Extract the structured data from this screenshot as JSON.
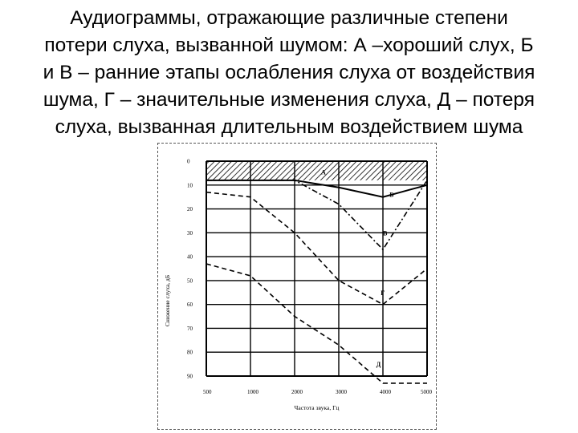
{
  "title_lines": [
    "Аудиограммы, отражающие различные степени",
    "потери слуха, вызванной шумом: А –хороший слух, Б",
    "и В – ранние этапы ослабления слуха от воздействия",
    "шума, Г – значительные изменения слуха, Д – потеря",
    "слуха, вызванная длительным воздействием шума"
  ],
  "chart_data": {
    "type": "line",
    "xlabel": "Частота звука, Гц",
    "ylabel": "Снижение слуха, дБ",
    "x_ticks": [
      "500",
      "1000",
      "2000",
      "3000",
      "4000",
      "5000"
    ],
    "y_ticks": [
      "0",
      "10",
      "20",
      "30",
      "40",
      "50",
      "60",
      "70",
      "80",
      "90"
    ],
    "ylim": [
      0,
      90
    ],
    "y_inverted": true,
    "grid": true,
    "region": {
      "name": "А",
      "from": 0,
      "to": 8,
      "pattern": "hatched"
    },
    "series": [
      {
        "name": "Б",
        "style": "solid",
        "x": [
          "500",
          "1000",
          "2000",
          "3000",
          "4000",
          "5000"
        ],
        "values": [
          8,
          8,
          8,
          11,
          15,
          10
        ]
      },
      {
        "name": "В",
        "style": "dash-dot",
        "x": [
          "500",
          "1000",
          "2000",
          "3000",
          "4000",
          "5000"
        ],
        "values": [
          8,
          8,
          8,
          18,
          37,
          8
        ]
      },
      {
        "name": "Г",
        "style": "dashed",
        "x": [
          "500",
          "1000",
          "2000",
          "3000",
          "4000",
          "5000"
        ],
        "values": [
          13,
          15,
          30,
          50,
          60,
          45
        ]
      },
      {
        "name": "Д",
        "style": "dashed",
        "x": [
          "500",
          "1000",
          "2000",
          "3000",
          "4000",
          "5000"
        ],
        "values": [
          43,
          48,
          65,
          77,
          93,
          93
        ]
      }
    ],
    "colors": {
      "line": "#000000",
      "grid": "#000000"
    }
  }
}
